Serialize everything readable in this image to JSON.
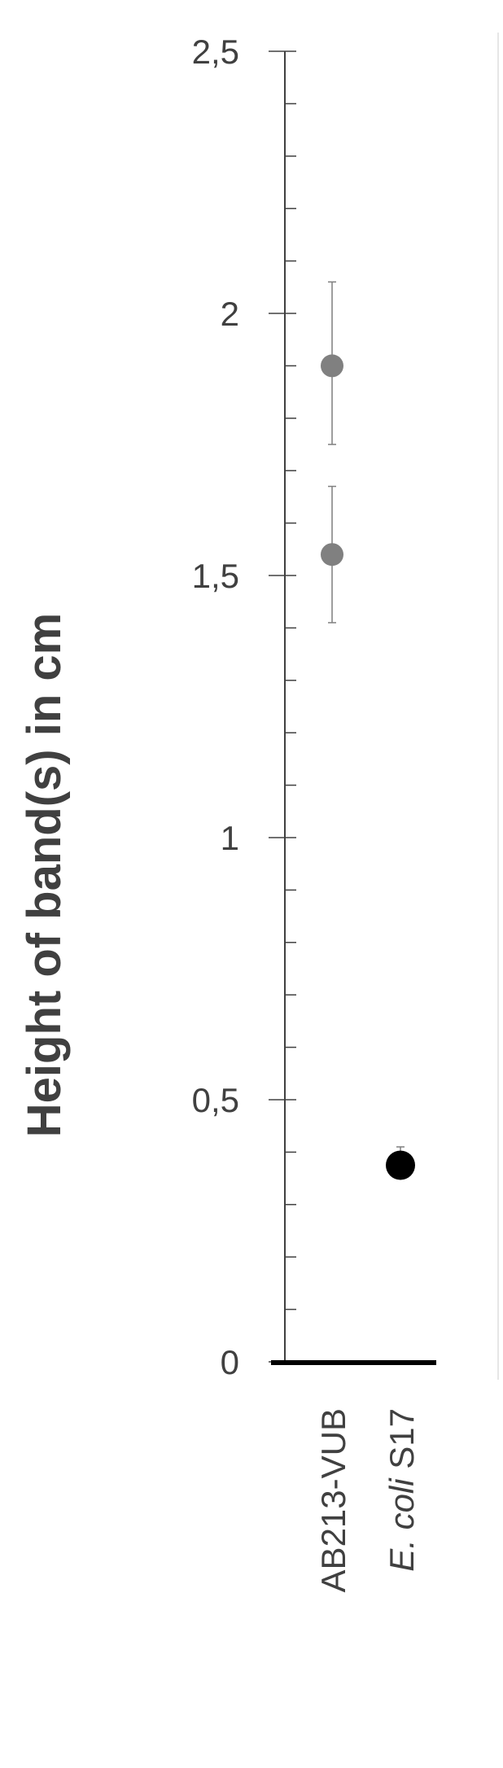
{
  "chart_data": {
    "type": "scatter",
    "ylabel": "Height of band(s) in cm",
    "xlabel": "",
    "ylim": [
      0,
      2.5
    ],
    "y_major_ticks": [
      "0",
      "0,5",
      "1",
      "1,5",
      "2",
      "2,5"
    ],
    "y_major_values": [
      0,
      0.5,
      1,
      1.5,
      2,
      2.5
    ],
    "y_minor_step": 0.1,
    "grid": false,
    "categories": [
      {
        "label": "AB213-VUB",
        "italic_part": "",
        "plain_part": "AB213-VUB"
      },
      {
        "label": "E. coli S17",
        "italic_part": "E. coli",
        "plain_part": " S17"
      }
    ],
    "series": [
      {
        "color": "#808080",
        "points": [
          {
            "category": 0,
            "y": 1.9,
            "err_low": 1.75,
            "err_high": 2.06
          },
          {
            "category": 0,
            "y": 1.54,
            "err_low": 1.41,
            "err_high": 1.67
          }
        ]
      },
      {
        "color": "#000000",
        "points": [
          {
            "category": 1,
            "y": 0.375,
            "err_low": 0.35,
            "err_high": 0.41
          }
        ]
      }
    ]
  }
}
